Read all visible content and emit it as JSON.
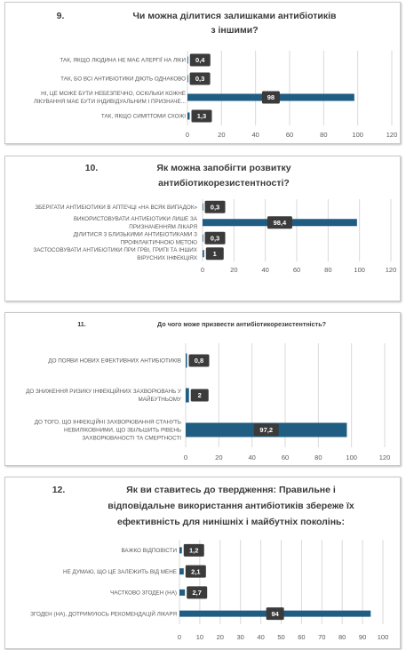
{
  "colors": {
    "bar": "#1f5d82",
    "label_bg": "#3b3b3b",
    "grid": "#d9d9d9",
    "text": "#595959"
  },
  "chart_data": [
    {
      "type": "bar",
      "orientation": "horizontal",
      "number": "9.",
      "title_lines": [
        "Чи можна ділитися залишками антибіотиків",
        "з іншими?"
      ],
      "categories": [
        [
          "ТАК, ЯКЩО ЛЮДИНА НЕ МАЄ АЛЕРГІЇ НА ЛІКИ"
        ],
        [
          "ТАК, БО ВСІ АНТИБІОТИКИ ДІЮТЬ ОДНАКОВО"
        ],
        [
          "НІ, ЦЕ МОЖЕ БУТИ НЕБЕЗПЕЧНО, ОСКІЛЬКИ КОЖНЕ",
          "ЛІКУВАННЯ МАЄ БУТИ ІНДИВІДУАЛЬНИМ І ПРИЗНАЧЕ..."
        ],
        [
          "ТАК, ЯКЩО СИМПТОМИ СХОЖІ"
        ]
      ],
      "values": [
        0.4,
        0.3,
        98,
        1.3
      ],
      "value_labels": [
        "0,4",
        "0,3",
        "98",
        "1,3"
      ],
      "xlim": [
        0,
        120
      ],
      "ticks": [
        "0",
        "20",
        "40",
        "60",
        "80",
        "100",
        "120"
      ],
      "grid": true
    },
    {
      "type": "bar",
      "orientation": "horizontal",
      "number": "10.",
      "title_lines": [
        "Як можна запобігти розвитку",
        "антибіотикорезистентності?"
      ],
      "categories": [
        [
          "ЗБЕРІГАТИ АНТИБІОТИКИ В АПТЕЧЦІ «НА ВСЯК ВИПАДОК»"
        ],
        [
          "ВИКОРИСТОВУВАТИ АНТИБІОТИКИ ЛИШЕ ЗА",
          "ПРИЗНАЧЕННЯМ ЛІКАРЯ"
        ],
        [
          "ДІЛИТИСЯ З БЛИЗЬКИМИ АНТИБІОТИКАМИ З",
          "ПРОФІЛАКТИЧНОЮ МЕТОЮ"
        ],
        [
          "ЗАСТОСОВУВАТИ АНТИБІОТИКИ ПРИ ГРВІ, ГРИПІ ТА ІНШИХ",
          "ВІРУСНИХ ІНФЕКЦІЯХ"
        ]
      ],
      "values": [
        0.3,
        98.4,
        0.3,
        1
      ],
      "value_labels": [
        "0,3",
        "98,4",
        "0,3",
        "1"
      ],
      "xlim": [
        0,
        120
      ],
      "ticks": [
        "0",
        "20",
        "40",
        "60",
        "80",
        "100",
        "120"
      ],
      "grid": true
    },
    {
      "type": "bar",
      "orientation": "horizontal",
      "number": "11.",
      "title_lines": [
        "До чого може призвести антибіотикорезистентність?"
      ],
      "categories": [
        [
          "ДО ПОЯВИ НОВИХ ЕФЕКТИВНИХ АНТИБІОТИКІВ"
        ],
        [
          "ДО ЗНИЖЕННЯ РИЗИКУ ІНФЕКЦІЙНИХ ЗАХВОРЮВАНЬ У",
          "МАЙБУТНЬОМУ"
        ],
        [
          "ДО ТОГО, ЩО ІНФЕКЦІЙНІ ЗАХВОРЮВАННЯ СТАНУТЬ",
          "НЕВИЛІКОВНИМИ, ЩО ЗБІЛЬШИТЬ РІВЕНЬ",
          "ЗАХВОРЮВАНОСТІ ТА СМЕРТНОСТІ"
        ]
      ],
      "values": [
        0.8,
        2,
        97.2
      ],
      "value_labels": [
        "0,8",
        "2",
        "97,2"
      ],
      "xlim": [
        0,
        120
      ],
      "ticks": [
        "0",
        "20",
        "40",
        "60",
        "80",
        "100",
        "120"
      ],
      "grid": true
    },
    {
      "type": "bar",
      "orientation": "horizontal",
      "number": "12.",
      "title_lines": [
        "Як ви ставитесь до твердження: Правильне і",
        "відповідальне використання антибіотиків збереже їх",
        "ефективність для нинішніх і майбутніх поколінь:"
      ],
      "categories": [
        [
          "ВАЖКО ВІДПОВІСТИ"
        ],
        [
          "НЕ ДУМАЮ, ЩО ЦЕ ЗАЛЕЖИТЬ ВІД МЕНЕ"
        ],
        [
          "ЧАСТКОВО ЗГОДЕН (НА)"
        ],
        [
          "ЗГОДЕН (НА), ДОТРИМУЮСЬ РЕКОМЕНДАЦІЙ ЛІКАРЯ"
        ]
      ],
      "values": [
        1.2,
        2.1,
        2.7,
        94
      ],
      "value_labels": [
        "1,2",
        "2,1",
        "2,7",
        "94"
      ],
      "xlim": [
        0,
        100
      ],
      "ticks": [
        "0",
        "10",
        "20",
        "30",
        "40",
        "50",
        "60",
        "70",
        "80",
        "90",
        "100"
      ],
      "grid": true
    }
  ]
}
